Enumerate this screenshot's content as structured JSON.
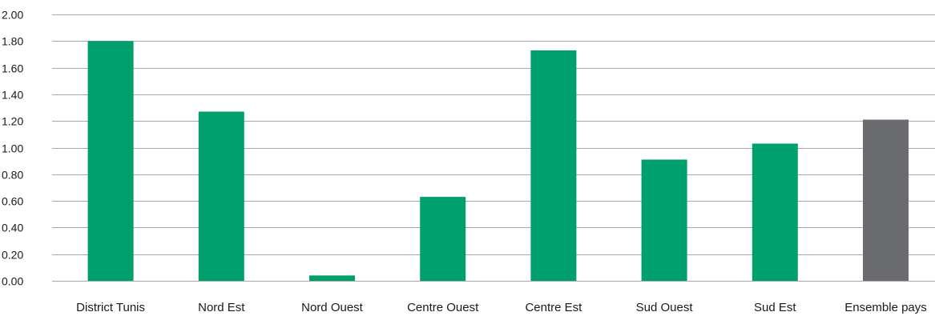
{
  "colors": {
    "region_bar": "#00A06E",
    "total_bar": "#6B6C70",
    "grid": "#A8A8A8",
    "text": "#1A1A1A"
  },
  "chart_data": {
    "type": "bar",
    "title": "",
    "xlabel": "",
    "ylabel": "",
    "ylim": [
      0,
      2
    ],
    "yticks": [
      "0.00",
      "0.20",
      "0.40",
      "0.60",
      "0.80",
      "1.00",
      "1.20",
      "1.40",
      "1.60",
      "1.80",
      "2.00"
    ],
    "grid": true,
    "legend": "none",
    "categories": [
      "District Tunis",
      "Nord Est",
      "Nord Ouest",
      "Centre Ouest",
      "Centre Est",
      "Sud Ouest",
      "Sud Est",
      "Ensemble pays"
    ],
    "values": [
      1.8,
      1.27,
      0.04,
      0.63,
      1.73,
      0.91,
      1.03,
      1.21
    ],
    "bar_color_keys": [
      "region_bar",
      "region_bar",
      "region_bar",
      "region_bar",
      "region_bar",
      "region_bar",
      "region_bar",
      "total_bar"
    ]
  }
}
